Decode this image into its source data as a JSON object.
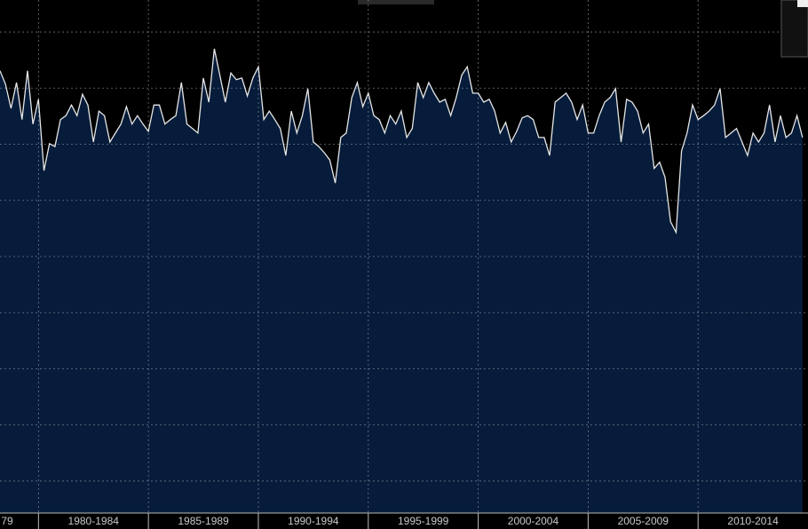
{
  "chart_data": {
    "type": "area",
    "x": [
      1978.25,
      1978.5,
      1978.75,
      1979,
      1979.25,
      1979.5,
      1979.75,
      1980,
      1980.25,
      1980.5,
      1980.75,
      1981,
      1981.25,
      1981.5,
      1981.75,
      1982,
      1982.25,
      1982.5,
      1982.75,
      1983,
      1983.25,
      1983.5,
      1983.75,
      1984,
      1984.25,
      1984.5,
      1984.75,
      1985,
      1985.25,
      1985.5,
      1985.75,
      1986,
      1986.25,
      1986.5,
      1986.75,
      1987,
      1987.25,
      1987.5,
      1987.75,
      1988,
      1988.25,
      1988.5,
      1988.75,
      1989,
      1989.25,
      1989.5,
      1989.75,
      1990,
      1990.25,
      1990.5,
      1990.75,
      1991,
      1991.25,
      1991.5,
      1991.75,
      1992,
      1992.25,
      1992.5,
      1992.75,
      1993,
      1993.25,
      1993.5,
      1993.75,
      1994,
      1994.25,
      1994.5,
      1994.75,
      1995,
      1995.25,
      1995.5,
      1995.75,
      1996,
      1996.25,
      1996.5,
      1996.75,
      1997,
      1997.25,
      1997.5,
      1997.75,
      1998,
      1998.25,
      1998.5,
      1998.75,
      1999,
      1999.25,
      1999.5,
      1999.75,
      2000,
      2000.25,
      2000.5,
      2000.75,
      2001,
      2001.25,
      2001.5,
      2001.75,
      2002,
      2002.25,
      2002.5,
      2002.75,
      2003,
      2003.25,
      2003.5,
      2003.75,
      2004,
      2004.25,
      2004.5,
      2004.75,
      2005,
      2005.25,
      2005.5,
      2005.75,
      2006,
      2006.25,
      2006.5,
      2006.75,
      2007,
      2007.25,
      2007.5,
      2007.75,
      2008,
      2008.25,
      2008.5,
      2008.75,
      2009,
      2009.25,
      2009.5,
      2009.75,
      2010,
      2010.25,
      2010.5,
      2010.75,
      2011,
      2011.25,
      2011.5,
      2011.75,
      2012,
      2012.25,
      2012.5,
      2012.75,
      2013,
      2013.25,
      2013.5,
      2013.75,
      2014,
      2014.25,
      2014.5,
      2014.75
    ],
    "values": [
      8.31,
      8.07,
      7.64,
      8.1,
      7.44,
      8.31,
      7.36,
      7.8,
      6.53,
      7.01,
      6.96,
      7.44,
      7.51,
      7.7,
      7.51,
      7.89,
      7.7,
      7.04,
      7.59,
      7.51,
      7.04,
      7.2,
      7.36,
      7.67,
      7.36,
      7.51,
      7.36,
      7.23,
      7.7,
      7.7,
      7.36,
      7.44,
      7.51,
      8.1,
      7.36,
      7.28,
      7.2,
      8.18,
      7.75,
      8.7,
      8.23,
      7.75,
      8.27,
      8.15,
      8.18,
      7.86,
      8.18,
      8.38,
      7.44,
      7.59,
      7.44,
      7.28,
      6.8,
      7.59,
      7.2,
      7.51,
      7.99,
      7.04,
      6.96,
      6.85,
      6.72,
      6.31,
      7.12,
      7.2,
      7.83,
      8.1,
      7.67,
      7.91,
      7.51,
      7.44,
      7.2,
      7.51,
      7.36,
      7.59,
      7.12,
      7.28,
      8.1,
      7.83,
      8.1,
      7.91,
      7.75,
      7.8,
      7.51,
      7.83,
      8.23,
      8.38,
      7.91,
      7.91,
      7.75,
      7.8,
      7.59,
      7.2,
      7.39,
      7.04,
      7.23,
      7.47,
      7.51,
      7.44,
      7.12,
      7.12,
      6.8,
      7.75,
      7.83,
      7.91,
      7.75,
      7.44,
      7.7,
      7.2,
      7.2,
      7.51,
      7.75,
      7.83,
      7.99,
      7.04,
      7.8,
      7.75,
      7.59,
      7.2,
      7.36,
      6.57,
      6.68,
      6.41,
      5.62,
      5.43,
      6.88,
      7.2,
      7.7,
      7.44,
      7.51,
      7.59,
      7.7,
      7.99,
      7.12,
      7.2,
      7.28,
      7.04,
      6.8,
      7.2,
      7.04,
      7.2,
      7.7,
      7.04,
      7.51,
      7.12,
      7.2,
      7.51,
      7.12
    ],
    "color": "#e6e6e6",
    "fill": "#061c3a",
    "xlim": [
      1978.25,
      2015
    ],
    "xticks": [
      {
        "value": 1975,
        "label": "79"
      },
      {
        "value": 1980,
        "label": "1980-1984"
      },
      {
        "value": 1985,
        "label": "1985-1989"
      },
      {
        "value": 1990,
        "label": "1990-1994"
      },
      {
        "value": 1995,
        "label": "1995-1999"
      },
      {
        "value": 2000,
        "label": "2000-2004"
      },
      {
        "value": 2005,
        "label": "2005-2009"
      },
      {
        "value": 2010,
        "label": "2010-2014"
      }
    ],
    "ylim": [
      0.43,
      9.57
    ],
    "yticks": [
      1,
      2,
      3,
      4,
      5,
      6,
      7,
      8,
      9
    ],
    "grid": true
  }
}
